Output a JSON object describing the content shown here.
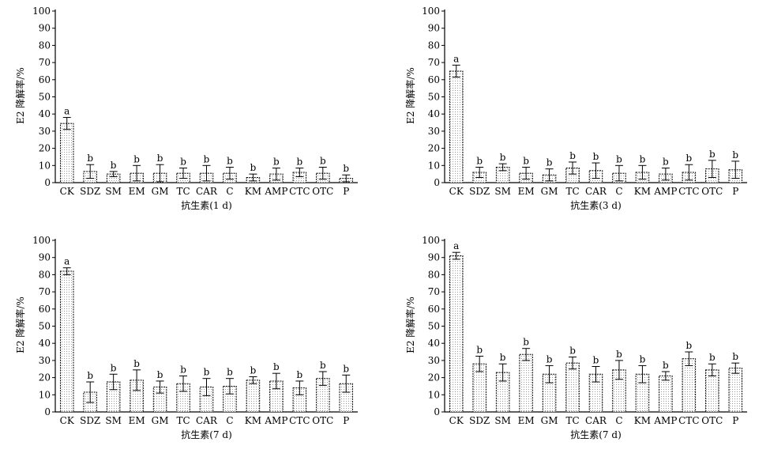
{
  "chart_data": [
    {
      "type": "bar",
      "xlabel": "抗生素(1 d)",
      "ylabel": "E2 降解率/%",
      "ylim": [
        0,
        100
      ],
      "yticks": [
        0,
        10,
        20,
        30,
        40,
        50,
        60,
        70,
        80,
        90,
        100
      ],
      "categories": [
        "CK",
        "SDZ",
        "SM",
        "EM",
        "GM",
        "TC",
        "CAR",
        "C",
        "KM",
        "AMP",
        "CTC",
        "OTC",
        "P"
      ],
      "values": [
        34.5,
        6.5,
        5,
        5.5,
        5.5,
        5.5,
        5.5,
        5.5,
        3,
        5,
        6,
        5.5,
        2.5
      ],
      "errors": [
        3.5,
        4,
        1.5,
        4.5,
        5,
        3,
        4.5,
        3.5,
        2,
        3.5,
        2.5,
        3.5,
        2
      ],
      "labels": [
        "a",
        "b",
        "b",
        "b",
        "b",
        "b",
        "b",
        "b",
        "b",
        "b",
        "b",
        "b",
        "b"
      ],
      "grid": false
    },
    {
      "type": "bar",
      "xlabel": "抗生素(3 d)",
      "ylabel": "E2 降解率/%",
      "ylim": [
        0,
        100
      ],
      "yticks": [
        0,
        10,
        20,
        30,
        40,
        50,
        60,
        70,
        80,
        90,
        100
      ],
      "categories": [
        "CK",
        "SDZ",
        "SM",
        "EM",
        "GM",
        "TC",
        "CAR",
        "C",
        "KM",
        "AMP",
        "CTC",
        "OTC",
        "P"
      ],
      "values": [
        65,
        6,
        9,
        5.5,
        4.5,
        8.5,
        7,
        5.5,
        6,
        5,
        6,
        8,
        7.5
      ],
      "errors": [
        3.5,
        3,
        2,
        3.5,
        3.5,
        3.5,
        4.5,
        4.5,
        4,
        3.5,
        4.5,
        5,
        5
      ],
      "labels": [
        "a",
        "b",
        "b",
        "b",
        "b",
        "b",
        "b",
        "b",
        "b",
        "b",
        "b",
        "b",
        "b"
      ],
      "grid": false
    },
    {
      "type": "bar",
      "xlabel": "抗生素(7 d)",
      "ylabel": "E2 降解率/%",
      "ylim": [
        0,
        100
      ],
      "yticks": [
        0,
        10,
        20,
        30,
        40,
        50,
        60,
        70,
        80,
        90,
        100
      ],
      "categories": [
        "CK",
        "SDZ",
        "SM",
        "EM",
        "GM",
        "TC",
        "CAR",
        "C",
        "KM",
        "AMP",
        "CTC",
        "OTC",
        "P"
      ],
      "values": [
        82,
        11.5,
        17.5,
        18.5,
        14.5,
        16.5,
        14.5,
        15,
        18.5,
        18,
        14,
        19.5,
        16.5
      ],
      "errors": [
        2,
        6,
        4.5,
        6,
        3.5,
        4.5,
        5,
        4.5,
        2,
        4.5,
        4,
        4,
        5
      ],
      "labels": [
        "a",
        "b",
        "b",
        "b",
        "b",
        "b",
        "b",
        "b",
        "b",
        "b",
        "b",
        "b",
        "b"
      ],
      "grid": false
    },
    {
      "type": "bar",
      "xlabel": "抗生素(7 d)",
      "ylabel": "E2 降解率/%",
      "ylim": [
        0,
        100
      ],
      "yticks": [
        0,
        10,
        20,
        30,
        40,
        50,
        60,
        70,
        80,
        90,
        100
      ],
      "categories": [
        "CK",
        "SDZ",
        "SM",
        "EM",
        "GM",
        "TC",
        "CAR",
        "C",
        "KM",
        "AMP",
        "CTC",
        "OTC",
        "P"
      ],
      "values": [
        91,
        28,
        23,
        33.5,
        22,
        28.5,
        22,
        24.5,
        22,
        21,
        31,
        24.5,
        25.5
      ],
      "errors": [
        2,
        4.5,
        5,
        3.5,
        5,
        3.5,
        4.5,
        5.5,
        5,
        2.5,
        4,
        3.5,
        3
      ],
      "labels": [
        "a",
        "b",
        "b",
        "b",
        "b",
        "b",
        "b",
        "b",
        "b",
        "b",
        "b",
        "b",
        "b"
      ],
      "grid": false
    }
  ]
}
